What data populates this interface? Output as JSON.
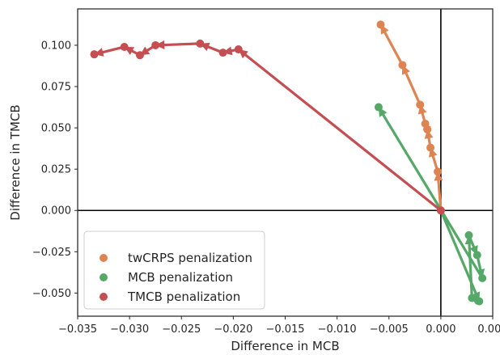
{
  "chart_data": {
    "type": "line",
    "title": "",
    "xlabel": "Difference in MCB",
    "ylabel": "Difference in TMCB",
    "xlim": [
      -0.035,
      0.005
    ],
    "ylim": [
      -0.064,
      0.122
    ],
    "x_ticks": [
      -0.035,
      -0.03,
      -0.025,
      -0.02,
      -0.015,
      -0.01,
      -0.005,
      0.0,
      0.005
    ],
    "x_tick_labels": [
      "−0.035",
      "−0.030",
      "−0.025",
      "−0.020",
      "−0.015",
      "−0.010",
      "−0.005",
      "0.000",
      "0.005"
    ],
    "y_ticks": [
      -0.05,
      -0.025,
      0.0,
      0.025,
      0.05,
      0.075,
      0.1
    ],
    "y_tick_labels": [
      "−0.050",
      "−0.025",
      "0.000",
      "0.025",
      "0.050",
      "0.075",
      "0.100"
    ],
    "reference_lines": {
      "x": 0,
      "y": 0
    },
    "grid": false,
    "legend_position": "lower-left",
    "series": [
      {
        "name": "twCRPS penalization",
        "color": "#dd8452",
        "points": [
          [
            0.0,
            0.0
          ],
          [
            -0.0003,
            0.0235
          ],
          [
            -0.001,
            0.038
          ],
          [
            -0.0013,
            0.049
          ],
          [
            -0.0015,
            0.0525
          ],
          [
            -0.002,
            0.064
          ],
          [
            -0.0037,
            0.088
          ],
          [
            -0.0058,
            0.1125
          ]
        ]
      },
      {
        "name": "MCB penalization",
        "color": "#55a868",
        "points": [
          [
            0.0,
            0.0
          ],
          [
            0.0037,
            -0.055
          ],
          [
            0.003,
            -0.053
          ],
          [
            0.0027,
            -0.015
          ],
          [
            0.0035,
            -0.027
          ],
          [
            0.004,
            -0.041
          ],
          [
            -0.006,
            0.0625
          ]
        ]
      },
      {
        "name": "TMCB penalization",
        "color": "#c44e52",
        "points": [
          [
            0.0,
            0.0
          ],
          [
            -0.0195,
            0.0975
          ],
          [
            -0.021,
            0.0955
          ],
          [
            -0.0232,
            0.101
          ],
          [
            -0.0275,
            0.1
          ],
          [
            -0.029,
            0.094
          ],
          [
            -0.0305,
            0.099
          ],
          [
            -0.0334,
            0.0945
          ]
        ]
      }
    ]
  }
}
